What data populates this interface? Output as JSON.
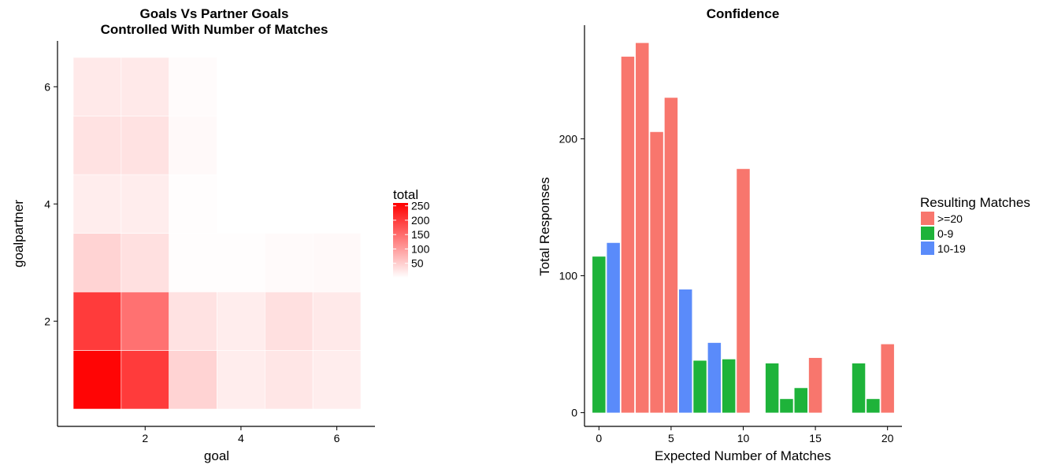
{
  "chart_data": [
    {
      "type": "heatmap",
      "title": "Goals Vs Partner Goals",
      "subtitle": "Controlled With Number of Matches",
      "xlabel": "goal",
      "ylabel": "goalpartner",
      "x_ticks": [
        2,
        4,
        6
      ],
      "y_ticks": [
        2,
        4,
        6
      ],
      "xlim": [
        0.5,
        6.5
      ],
      "ylim": [
        0.5,
        6.5
      ],
      "legend_title": "total",
      "legend_ticks": [
        50,
        100,
        150,
        200,
        250
      ],
      "scale_range": [
        0,
        260
      ],
      "low_color": "#ffffff",
      "high_color": "#ff0000",
      "legend_position": "right",
      "cells": [
        {
          "x": 1,
          "y": 1,
          "value": 255
        },
        {
          "x": 2,
          "y": 1,
          "value": 200
        },
        {
          "x": 3,
          "y": 1,
          "value": 45
        },
        {
          "x": 4,
          "y": 1,
          "value": 18
        },
        {
          "x": 5,
          "y": 1,
          "value": 25
        },
        {
          "x": 6,
          "y": 1,
          "value": 18
        },
        {
          "x": 1,
          "y": 2,
          "value": 200
        },
        {
          "x": 2,
          "y": 2,
          "value": 145
        },
        {
          "x": 3,
          "y": 2,
          "value": 30
        },
        {
          "x": 4,
          "y": 2,
          "value": 18
        },
        {
          "x": 5,
          "y": 2,
          "value": 32
        },
        {
          "x": 6,
          "y": 2,
          "value": 22
        },
        {
          "x": 1,
          "y": 3,
          "value": 45
        },
        {
          "x": 2,
          "y": 3,
          "value": 32
        },
        {
          "x": 3,
          "y": 3,
          "value": 2
        },
        {
          "x": 4,
          "y": 3,
          "value": 2
        },
        {
          "x": 5,
          "y": 3,
          "value": 5
        },
        {
          "x": 6,
          "y": 3,
          "value": 6
        },
        {
          "x": 1,
          "y": 4,
          "value": 18
        },
        {
          "x": 2,
          "y": 4,
          "value": 18
        },
        {
          "x": 3,
          "y": 4,
          "value": 2
        },
        {
          "x": 1,
          "y": 5,
          "value": 30
        },
        {
          "x": 2,
          "y": 5,
          "value": 30
        },
        {
          "x": 3,
          "y": 5,
          "value": 6
        },
        {
          "x": 1,
          "y": 6,
          "value": 22
        },
        {
          "x": 2,
          "y": 6,
          "value": 22
        },
        {
          "x": 3,
          "y": 6,
          "value": 4
        }
      ]
    },
    {
      "type": "bar",
      "title": "Confidence",
      "xlabel": "Expected Number of Matches",
      "ylabel": "Total Responses",
      "x_ticks": [
        0,
        5,
        10,
        15,
        20
      ],
      "y_ticks": [
        0,
        100,
        200
      ],
      "xlim": [
        -1,
        21
      ],
      "ylim": [
        -10,
        283
      ],
      "legend_title": "Resulting Matches",
      "legend_position": "right",
      "series": [
        {
          "name": ">=20",
          "color": "#F8766D",
          "points": [
            [
              2,
              260
            ],
            [
              3,
              270
            ],
            [
              4,
              205
            ],
            [
              5,
              230
            ],
            [
              10,
              178
            ],
            [
              15,
              40
            ],
            [
              20,
              50
            ]
          ]
        },
        {
          "name": "0-9",
          "color": "#1EB33A",
          "points": [
            [
              0,
              114
            ],
            [
              7,
              38
            ],
            [
              9,
              39
            ],
            [
              12,
              36
            ],
            [
              13,
              10
            ],
            [
              14,
              18
            ],
            [
              18,
              36
            ],
            [
              19,
              10
            ]
          ]
        },
        {
          "name": "10-19",
          "color": "#5A8BFA",
          "points": [
            [
              1,
              124
            ],
            [
              6,
              90
            ],
            [
              8,
              51
            ]
          ]
        }
      ]
    }
  ]
}
